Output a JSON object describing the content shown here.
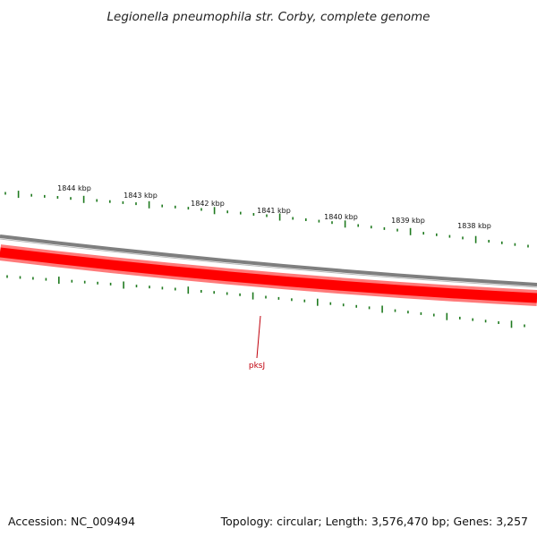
{
  "title": "Legionella pneumophila str. Corby, complete genome",
  "footer": {
    "accession": "Accession: NC_009494",
    "summary": "Topology: circular; Length: 3,576,470 bp; Genes: 3,257"
  },
  "scale_labels": [
    "1844 kbp",
    "1843 kbp",
    "1842 kbp",
    "1841 kbp",
    "1840 kbp",
    "1839 kbp",
    "1838 kbp"
  ],
  "genes": [
    {
      "label": "pksJ",
      "color": "#c0000c"
    }
  ],
  "colors": {
    "tick": "#1f7a1f",
    "backbone": "#808080",
    "feature": "#ff0000",
    "feature_halo": "#ff8080"
  }
}
